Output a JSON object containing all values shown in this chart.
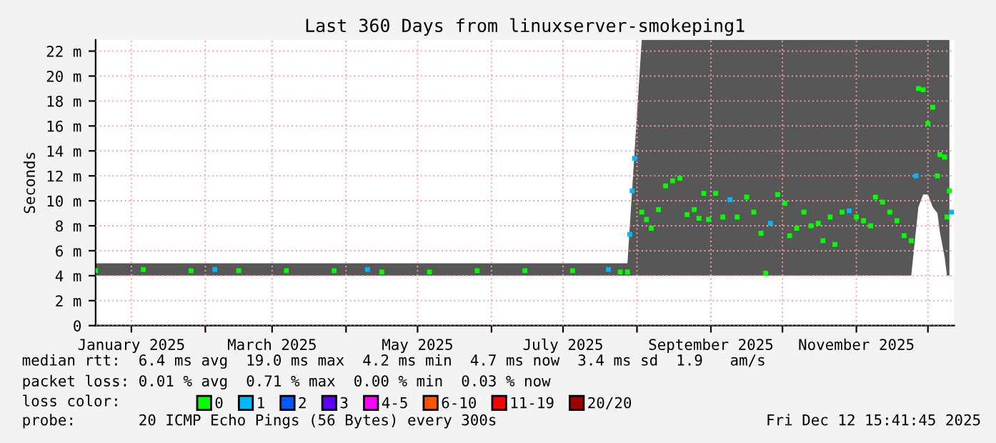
{
  "chart_data": {
    "type": "scatter",
    "title": "Last 360 Days from linuxserver-smokeping1",
    "ylabel": "Seconds",
    "xlim": [
      "2024-12-17",
      "2025-12-12"
    ],
    "ylim": [
      0,
      22.9
    ],
    "yticks": [
      0,
      {
        "value": 2,
        "label": "2 m"
      },
      {
        "value": 4,
        "label": "4 m"
      },
      {
        "value": 6,
        "label": "6 m"
      },
      {
        "value": 8,
        "label": "8 m"
      },
      {
        "value": 10,
        "label": "10 m"
      },
      {
        "value": 12,
        "label": "12 m"
      },
      {
        "value": 14,
        "label": "14 m"
      },
      {
        "value": 16,
        "label": "16 m"
      },
      {
        "value": 18,
        "label": "18 m"
      },
      {
        "value": 20,
        "label": "20 m"
      },
      {
        "value": 22,
        "label": "22 m"
      }
    ],
    "xticks": [
      {
        "value": "2025-01-01",
        "label": "January 2025"
      },
      {
        "value": "2025-02-01",
        "label": null
      },
      {
        "value": "2025-03-01",
        "label": "March 2025"
      },
      {
        "value": "2025-04-01",
        "label": null
      },
      {
        "value": "2025-05-01",
        "label": "May 2025"
      },
      {
        "value": "2025-06-01",
        "label": null
      },
      {
        "value": "2025-07-01",
        "label": "July 2025"
      },
      {
        "value": "2025-08-01",
        "label": null
      },
      {
        "value": "2025-09-01",
        "label": "September 2025"
      },
      {
        "value": "2025-10-01",
        "label": null
      },
      {
        "value": "2025-11-01",
        "label": "November 2025"
      },
      {
        "value": "2025-12-01",
        "label": null
      }
    ],
    "grid": true,
    "marker": "square",
    "legend": "bottom",
    "legend_title": "loss color:",
    "series": [
      {
        "name": "0",
        "color": "#00ff00",
        "x": [
          "2024-12-17",
          "2025-01-06",
          "2025-01-26",
          "2025-02-15",
          "2025-03-07",
          "2025-03-27",
          "2025-04-16",
          "2025-05-06",
          "2025-05-26",
          "2025-06-15",
          "2025-07-05",
          "2025-07-25",
          "2025-07-28",
          "2025-08-03",
          "2025-08-05",
          "2025-08-07",
          "2025-08-10",
          "2025-08-13",
          "2025-08-16",
          "2025-08-19",
          "2025-08-22",
          "2025-08-25",
          "2025-08-27",
          "2025-08-29",
          "2025-08-31",
          "2025-09-03",
          "2025-09-06",
          "2025-09-12",
          "2025-09-16",
          "2025-09-19",
          "2025-09-22",
          "2025-09-24",
          "2025-09-29",
          "2025-10-02",
          "2025-10-04",
          "2025-10-07",
          "2025-10-10",
          "2025-10-13",
          "2025-10-16",
          "2025-10-18",
          "2025-10-21",
          "2025-10-23",
          "2025-10-26",
          "2025-11-01",
          "2025-11-04",
          "2025-11-07",
          "2025-11-09",
          "2025-11-12",
          "2025-11-15",
          "2025-11-18",
          "2025-11-21",
          "2025-11-24",
          "2025-11-27",
          "2025-11-29",
          "2025-12-01",
          "2025-12-03",
          "2025-12-05",
          "2025-12-06",
          "2025-12-08",
          "2025-12-09",
          "2025-12-10"
        ],
        "values": [
          4.4,
          4.5,
          4.4,
          4.4,
          4.4,
          4.4,
          4.3,
          4.3,
          4.4,
          4.4,
          4.4,
          4.3,
          4.3,
          9.1,
          8.5,
          7.8,
          9.3,
          11.2,
          11.6,
          11.8,
          8.9,
          9.3,
          8.6,
          10.6,
          8.5,
          10.6,
          8.7,
          8.7,
          10.3,
          9.1,
          7.4,
          4.2,
          10.5,
          9.8,
          7.2,
          7.8,
          9.1,
          8.0,
          8.2,
          6.8,
          8.7,
          6.5,
          9.1,
          8.7,
          8.4,
          8.0,
          10.3,
          9.9,
          9.1,
          8.4,
          7.2,
          6.8,
          19.0,
          18.9,
          16.2,
          17.5,
          12.0,
          13.7,
          13.5,
          8.7,
          10.8
        ],
        "lower": [
          4,
          4,
          4,
          4,
          4,
          4,
          4,
          4,
          4,
          4,
          4,
          4,
          4,
          4,
          4,
          4,
          4,
          4,
          4,
          4,
          4,
          4,
          4,
          4,
          4,
          4,
          4,
          4,
          4,
          4,
          4,
          4,
          4,
          4,
          4,
          4,
          4,
          4,
          4,
          4,
          4,
          4,
          4,
          4,
          4,
          4,
          4,
          4,
          4,
          4,
          4,
          4,
          9.5,
          10.5,
          10.5,
          9.5,
          9,
          7.5,
          5.5,
          4,
          4
        ],
        "upper": [
          5,
          5,
          5,
          5,
          5,
          5,
          5,
          5,
          5,
          5,
          5,
          5,
          5,
          22.9,
          22.9,
          22.9,
          22.9,
          22.9,
          22.9,
          22.9,
          22.9,
          22.9,
          22.9,
          22.9,
          22.9,
          22.9,
          22.9,
          22.9,
          22.9,
          22.9,
          22.9,
          22.9,
          22.9,
          22.9,
          22.9,
          22.9,
          22.9,
          22.9,
          22.9,
          22.9,
          22.9,
          22.9,
          22.9,
          22.9,
          22.9,
          22.9,
          22.9,
          22.9,
          22.9,
          22.9,
          22.9,
          22.9,
          22.9,
          22.9,
          22.9,
          22.9,
          22.9,
          22.9,
          22.9,
          22.9,
          22.9
        ]
      },
      {
        "name": "1",
        "color": "#00b8ff",
        "x": [
          "2025-02-05",
          "2025-04-10",
          "2025-07-20",
          "2025-07-29",
          "2025-07-30",
          "2025-07-31",
          "2025-09-09",
          "2025-09-26",
          "2025-10-29",
          "2025-11-26",
          "2025-12-11"
        ],
        "values": [
          4.5,
          4.5,
          4.5,
          7.3,
          10.8,
          13.4,
          10.1,
          8.2,
          9.2,
          12.0,
          9.1
        ]
      },
      {
        "name": "2",
        "color": "#0059ff"
      },
      {
        "name": "3",
        "color": "#5e00ff"
      },
      {
        "name": "4-5",
        "color": "#ff00ff"
      },
      {
        "name": "6-10",
        "color": "#ff5500"
      },
      {
        "name": "11-19",
        "color": "#ff0000"
      },
      {
        "name": "20/20",
        "color": "#a10000"
      }
    ],
    "annotations": [
      "median rtt:  6.4 ms avg  19.0 ms max  4.2 ms min  4.7 ms now  3.4 ms sd  1.9   am/s",
      "packet loss: 0.01 % avg  0.71 % max  0.00 % min  0.03 % now",
      "probe:       20 ICMP Echo Pings (56 Bytes) every 300s",
      "Fri Dec 12 15:41:45 2025"
    ]
  }
}
